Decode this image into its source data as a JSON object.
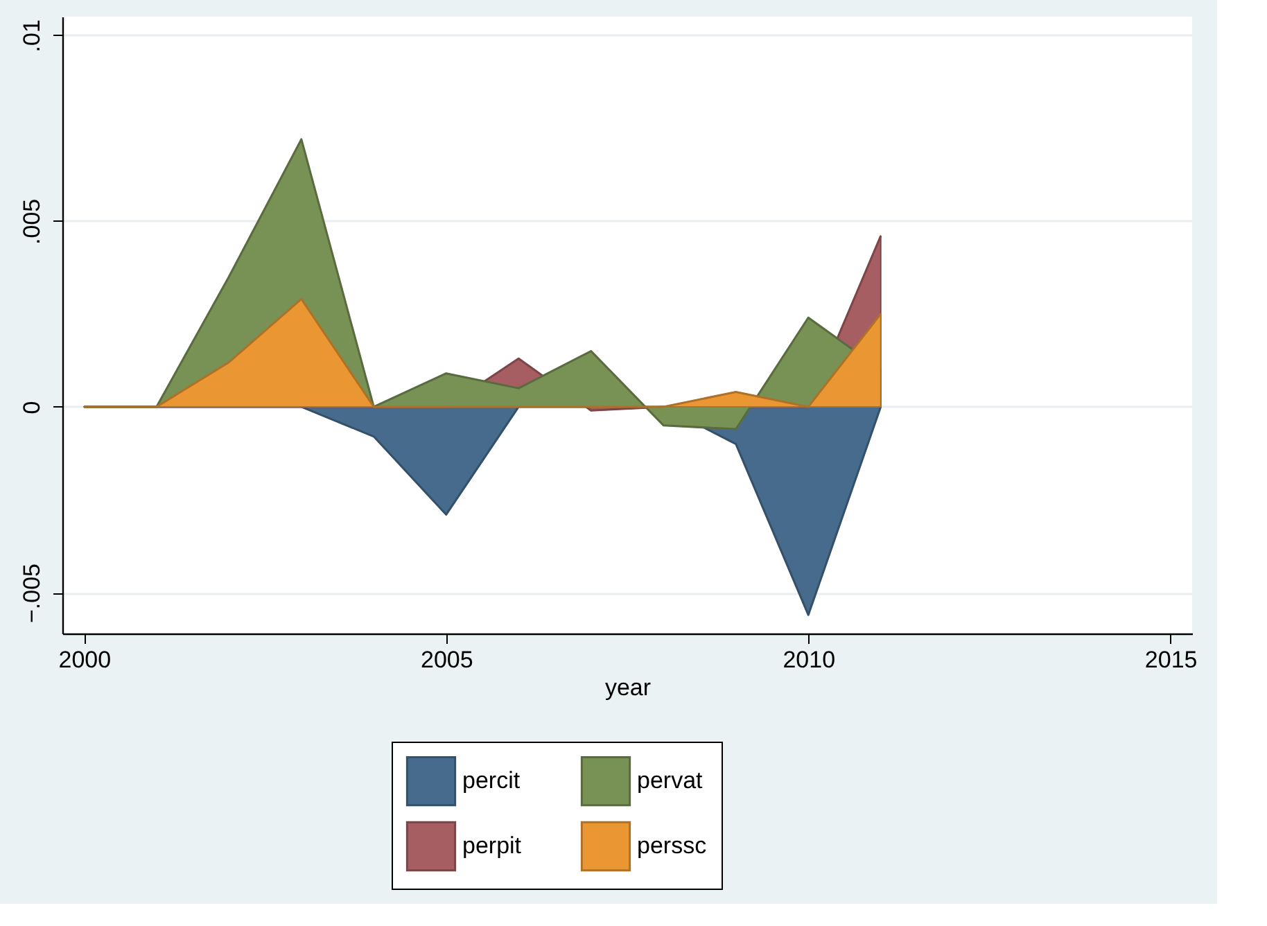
{
  "chart_data": {
    "type": "area",
    "xlabel": "year",
    "x": [
      2000,
      2001,
      2002,
      2003,
      2004,
      2005,
      2006,
      2007,
      2008,
      2009,
      2010,
      2011
    ],
    "series": [
      {
        "name": "percit",
        "color": "#476b8c",
        "values": [
          0,
          0,
          0,
          0,
          -0.0008,
          -0.0029,
          0,
          0,
          0,
          -0.001,
          -0.0056,
          0
        ]
      },
      {
        "name": "perpit",
        "color": "#a65e62",
        "values": [
          0,
          0,
          0,
          0,
          0,
          0,
          0.0013,
          -0.0001,
          0,
          0,
          0,
          0.0046
        ]
      },
      {
        "name": "pervat",
        "color": "#789155",
        "values": [
          0,
          0,
          0.0035,
          0.0072,
          0,
          0.0009,
          0.0005,
          0.0015,
          -0.0005,
          -0.0006,
          0.0024,
          0.001
        ]
      },
      {
        "name": "perssc",
        "color": "#ea9733",
        "values": [
          0,
          0,
          0.0012,
          0.0029,
          0,
          0,
          0,
          0,
          0,
          0.0004,
          0,
          0.0025
        ]
      }
    ],
    "xlim": [
      1999.7,
      2015.3
    ],
    "xticks": [
      2000,
      2005,
      2010,
      2015
    ],
    "ylim": [
      -0.0061,
      0.0105
    ],
    "yticks": [
      {
        "value": -0.005,
        "label": "−.005"
      },
      {
        "value": 0,
        "label": "0"
      },
      {
        "value": 0.005,
        "label": ".005"
      },
      {
        "value": 0.01,
        "label": ".01"
      }
    ],
    "grid": "y",
    "legend": "bottom"
  }
}
